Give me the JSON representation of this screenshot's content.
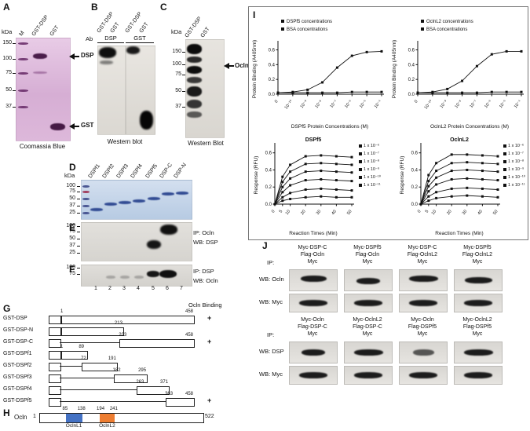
{
  "panel_a": {
    "label": "A",
    "kda_title": "kDa",
    "markers": [
      "150",
      "100",
      "75",
      "50",
      "37"
    ],
    "lanes": [
      "M",
      "GST-DSP",
      "GST"
    ],
    "arrow_dsp": "DSP",
    "arrow_gst": "GST",
    "caption": "Coomassia Blue"
  },
  "panel_b": {
    "label": "B",
    "lane_groups": [
      "GST-DSP",
      "GST",
      "GST-DSP",
      "GST"
    ],
    "ab_label": "Ab",
    "antibodies": [
      "DSP",
      "GST"
    ],
    "caption": "Western blot"
  },
  "panel_c": {
    "label": "C",
    "kda_title": "kDa",
    "markers": [
      "150",
      "100",
      "75",
      "50",
      "37"
    ],
    "lanes": [
      "GST-DSP",
      "GST"
    ],
    "arrow": "Ocln",
    "caption": "Western Blot"
  },
  "panel_d": {
    "label": "D",
    "kda_title": "kDa",
    "markers": [
      "100",
      "75",
      "50",
      "37",
      "25"
    ],
    "lanes": [
      "DSPf1",
      "DSPf2",
      "DSPf3",
      "DSPf4",
      "DSPf5",
      "DSP-C",
      "DSP-N"
    ]
  },
  "panel_e": {
    "label": "E",
    "markers": [
      "100",
      "75",
      "50",
      "37",
      "25"
    ],
    "ip": "IP:  Ocln",
    "wb": "WB: DSP"
  },
  "panel_f": {
    "label": "F",
    "markers": [
      "100",
      "75"
    ],
    "ip": "IP:  DSP",
    "wb": "WB: Ocln",
    "lane_numbers": [
      "1",
      "2",
      "3",
      "4",
      "5",
      "6",
      "7"
    ]
  },
  "panel_g": {
    "label": "G",
    "binding_header": "Ocln Binding",
    "constructs": [
      {
        "name": "GST-DSP",
        "start": 1,
        "end": 458,
        "binding": "+"
      },
      {
        "name": "GST-DSP-N",
        "start": 1,
        "end": 213,
        "binding": ""
      },
      {
        "name": "GST-DSP-C",
        "start": 203,
        "end": 458,
        "binding": "+"
      },
      {
        "name": "GST-DSPf1",
        "start": 1,
        "end": 89,
        "binding": ""
      },
      {
        "name": "GST-DSPf2",
        "start": 72,
        "end": 191,
        "binding": ""
      },
      {
        "name": "GST-DSPf3",
        "start": 182,
        "end": 295,
        "binding": ""
      },
      {
        "name": "GST-DSPf4",
        "start": 263,
        "end": 371,
        "binding": ""
      },
      {
        "name": "GST-DSPf5",
        "start": 363,
        "end": 458,
        "binding": "+"
      }
    ]
  },
  "panel_h": {
    "label": "H",
    "protein": "Ocln",
    "start": "1",
    "end": "522",
    "length": 522,
    "domains": [
      {
        "name": "OclnL1",
        "start": 85,
        "end": 138,
        "color": "#4472c4"
      },
      {
        "name": "OclnL2",
        "start": 194,
        "end": 241,
        "color": "#ed7d31"
      }
    ]
  },
  "panel_i": {
    "label": "I"
  },
  "chart_data": [
    {
      "type": "line",
      "title": "",
      "xlabel": "DSPf5 Protein Concentrations (M)",
      "ylabel": "Protein Binding (A405nm)",
      "x_ticks": [
        "0",
        "10⁻¹⁰",
        "10⁻⁹",
        "10⁻⁸",
        "10⁻⁷",
        "10⁻⁶",
        "10⁻⁵",
        "10⁻⁴"
      ],
      "y_ticks": [
        0,
        0.2,
        0.4,
        0.6
      ],
      "ylim": [
        0,
        0.68
      ],
      "legend_position": "top-left-inside",
      "series": [
        {
          "name": "DSPf5 concentrations",
          "values": [
            0.02,
            0.03,
            0.06,
            0.16,
            0.36,
            0.52,
            0.57,
            0.58
          ]
        },
        {
          "name": "BSA concentrations",
          "values": [
            0.02,
            0.02,
            0.02,
            0.02,
            0.02,
            0.03,
            0.03,
            0.03
          ]
        }
      ]
    },
    {
      "type": "line",
      "title": "",
      "xlabel": "OclnL2 Protein Concentrations (M)",
      "ylabel": "Protein Binding (A405nm)",
      "x_ticks": [
        "0",
        "10⁻¹⁰",
        "10⁻⁹",
        "10⁻⁸",
        "10⁻⁷",
        "10⁻⁶",
        "10⁻⁵",
        "10⁻⁴"
      ],
      "y_ticks": [
        0,
        0.2,
        0.4,
        0.6
      ],
      "ylim": [
        0,
        0.68
      ],
      "legend_position": "top-left-inside",
      "series": [
        {
          "name": "OclnL2 concentrations",
          "values": [
            0.02,
            0.03,
            0.07,
            0.18,
            0.38,
            0.54,
            0.58,
            0.58
          ]
        },
        {
          "name": "BSA concentrations",
          "values": [
            0.02,
            0.02,
            0.02,
            0.02,
            0.02,
            0.03,
            0.03,
            0.03
          ]
        }
      ]
    },
    {
      "type": "line",
      "title": "DSPf5",
      "xlabel": "Reaction Times (Min)",
      "ylabel": "Response (RFU)",
      "x": [
        0,
        5,
        10,
        20,
        30,
        40,
        50
      ],
      "x_ticks": [
        "0",
        "5",
        "10",
        "20",
        "30",
        "40",
        "50"
      ],
      "y_ticks": [
        0,
        0.2,
        0.4,
        0.6
      ],
      "ylim": [
        0,
        0.68
      ],
      "legend_position": "right-outside",
      "series": [
        {
          "name": "1 x 10⁻⁶",
          "values": [
            0,
            0.32,
            0.46,
            0.56,
            0.57,
            0.56,
            0.55
          ]
        },
        {
          "name": "1 x 10⁻⁷",
          "values": [
            0,
            0.26,
            0.38,
            0.47,
            0.48,
            0.47,
            0.46
          ]
        },
        {
          "name": "1 x 10⁻⁸",
          "values": [
            0,
            0.2,
            0.3,
            0.38,
            0.39,
            0.38,
            0.37
          ]
        },
        {
          "name": "1 x 10⁻⁹",
          "values": [
            0,
            0.14,
            0.22,
            0.28,
            0.29,
            0.28,
            0.27
          ]
        },
        {
          "name": "1 x 10⁻¹⁰",
          "values": [
            0,
            0.08,
            0.13,
            0.17,
            0.18,
            0.17,
            0.16
          ]
        },
        {
          "name": "1 x 10⁻¹¹",
          "values": [
            0,
            0.04,
            0.06,
            0.08,
            0.09,
            0.08,
            0.08
          ]
        }
      ]
    },
    {
      "type": "line",
      "title": "OclnL2",
      "xlabel": "Reaction Times (Min)",
      "ylabel": "Response (RFU)",
      "x": [
        0,
        5,
        10,
        20,
        30,
        40,
        50
      ],
      "x_ticks": [
        "0",
        "5",
        "10",
        "20",
        "30",
        "40",
        "50"
      ],
      "y_ticks": [
        0,
        0.2,
        0.4,
        0.6
      ],
      "ylim": [
        0,
        0.68
      ],
      "legend_position": "right-outside",
      "series": [
        {
          "name": "1 x 10⁻⁶",
          "values": [
            0,
            0.34,
            0.48,
            0.58,
            0.58,
            0.57,
            0.56
          ]
        },
        {
          "name": "1 x 10⁻⁷",
          "values": [
            0,
            0.27,
            0.39,
            0.48,
            0.49,
            0.48,
            0.47
          ]
        },
        {
          "name": "1 x 10⁻⁸",
          "values": [
            0,
            0.21,
            0.31,
            0.39,
            0.4,
            0.39,
            0.38
          ]
        },
        {
          "name": "1 x 10⁻⁹",
          "values": [
            0,
            0.15,
            0.23,
            0.29,
            0.3,
            0.29,
            0.28
          ]
        },
        {
          "name": "1 x 10⁻¹⁰",
          "values": [
            0,
            0.09,
            0.14,
            0.18,
            0.19,
            0.18,
            0.17
          ]
        },
        {
          "name": "1 x 10⁻¹¹",
          "values": [
            0,
            0.04,
            0.07,
            0.09,
            0.1,
            0.09,
            0.08
          ]
        }
      ]
    }
  ],
  "panel_j": {
    "label": "J",
    "ip_label": "IP:",
    "top": {
      "columns": [
        [
          "Myc-DSP-C",
          "Flag-Ocln",
          "Myc"
        ],
        [
          "Myc-DSPf5",
          "Flag-Ocln",
          "Myc"
        ],
        [
          "Myc-DSP-C",
          "Flag-OclnL2",
          "Myc"
        ],
        [
          "Myc-DSPf5",
          "Flag-OclnL2",
          "Myc"
        ]
      ],
      "rows": [
        "WB: Ocln",
        "WB: Myc"
      ]
    },
    "bottom": {
      "columns": [
        [
          "Myc-Ocln",
          "Flag-DSP-C",
          "Myc"
        ],
        [
          "Myc-OclnL2",
          "Flag-DSP-C",
          "Myc"
        ],
        [
          "Myc-Ocln",
          "Flag-DSPf5",
          "Myc"
        ],
        [
          "Myc-OclnL2",
          "Flag-DSPf5",
          "Myc"
        ]
      ],
      "rows": [
        "WB: DSP",
        "WB: Myc"
      ]
    }
  }
}
